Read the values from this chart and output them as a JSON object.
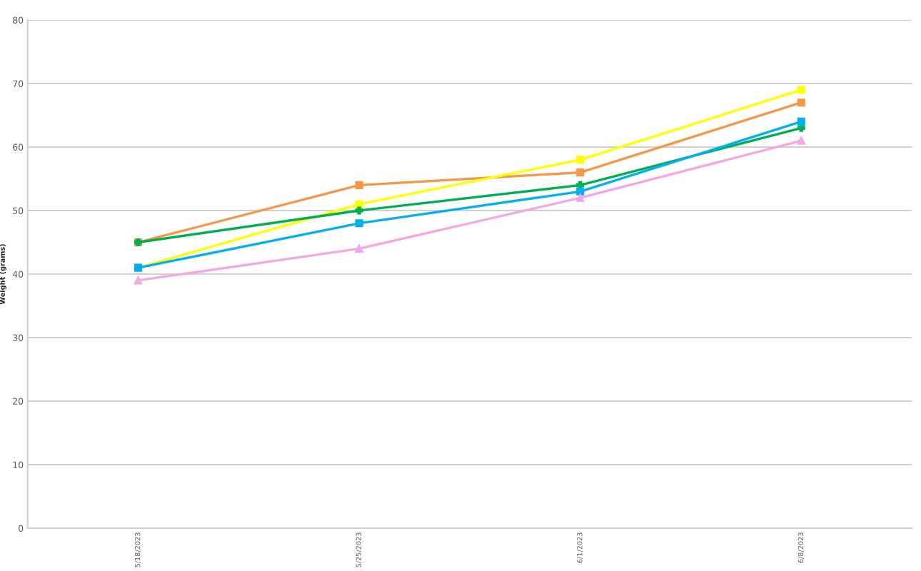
{
  "chart_data": {
    "type": "line",
    "ylabel": "Weight (grams)",
    "categories": [
      "5/18/2023",
      "5/25/2023",
      "6/1/2023",
      "6/8/2023"
    ],
    "series": [
      {
        "color": "#f79646",
        "values": [
          45,
          54,
          56,
          67
        ],
        "marker": "square"
      },
      {
        "color": "#ffff00",
        "values": [
          41,
          51,
          58,
          69
        ],
        "marker": "square"
      },
      {
        "color": "#00b050",
        "values": [
          45,
          50,
          54,
          63
        ],
        "marker": "cross"
      },
      {
        "color": "#00b0f0",
        "values": [
          41,
          48,
          53,
          64
        ],
        "marker": "square"
      },
      {
        "color": "#f4a6e6",
        "values": [
          39,
          44,
          52,
          61
        ],
        "marker": "triangle"
      }
    ],
    "ylim": [
      0,
      80
    ],
    "yticks": [
      0,
      10,
      20,
      30,
      40,
      50,
      60,
      70,
      80
    ],
    "grid": "y",
    "line_style": "solid"
  }
}
